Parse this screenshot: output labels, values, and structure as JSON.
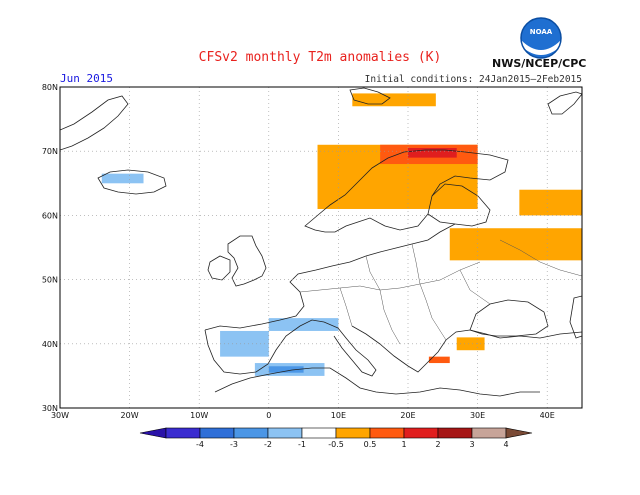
{
  "title": "CFSv2 monthly T2m anomalies (K)",
  "month": "Jun 2015",
  "initial_conditions": "Initial conditions: 24Jan2015–2Feb2015",
  "agency": "NWS/NCEP/CPC",
  "logo_text": "NOAA",
  "map": {
    "lon_range": [
      -30,
      45
    ],
    "lat_range": [
      30,
      80
    ],
    "lon_ticks": [
      {
        "value": -30,
        "label": "30W"
      },
      {
        "value": -20,
        "label": "20W"
      },
      {
        "value": -10,
        "label": "10W"
      },
      {
        "value": 0,
        "label": "0"
      },
      {
        "value": 10,
        "label": "10E"
      },
      {
        "value": 20,
        "label": "20E"
      },
      {
        "value": 30,
        "label": "30E"
      },
      {
        "value": 40,
        "label": "40E"
      }
    ],
    "lat_ticks": [
      {
        "value": 30,
        "label": "30N"
      },
      {
        "value": 40,
        "label": "40N"
      },
      {
        "value": 50,
        "label": "50N"
      },
      {
        "value": 60,
        "label": "60N"
      },
      {
        "value": 70,
        "label": "70N"
      },
      {
        "value": 80,
        "label": "80N"
      }
    ],
    "gridlines": "dotted"
  },
  "colorbar": {
    "labels": [
      "-4",
      "-3",
      "-2",
      "-1",
      "-0.5",
      "0.5",
      "1",
      "2",
      "3",
      "4"
    ],
    "colors": [
      "#2a12a8",
      "#3a2cd0",
      "#2f6fd8",
      "#4b96e6",
      "#8cc3f3",
      "#ffffff",
      "#ffa500",
      "#ff5a10",
      "#e01e1e",
      "#a61616",
      "#c7a499",
      "#7a4a35"
    ]
  },
  "anomaly_regions": [
    {
      "name": "iceland-cool",
      "bin": "-1 to -0.5",
      "color": "#8cc3f3",
      "lon": [
        -24,
        -18
      ],
      "lat": [
        65,
        66.5
      ]
    },
    {
      "name": "iberia-cool",
      "bin": "-1 to -0.5",
      "color": "#8cc3f3",
      "lon": [
        -7,
        0
      ],
      "lat": [
        38,
        42
      ]
    },
    {
      "name": "iberia-north-coast-cool",
      "bin": "-1 to -0.5",
      "color": "#8cc3f3",
      "lon": [
        0,
        10
      ],
      "lat": [
        42,
        44
      ]
    },
    {
      "name": "north-africa-cool",
      "bin": "-1 to -0.5",
      "color": "#8cc3f3",
      "lon": [
        -2,
        8
      ],
      "lat": [
        35,
        37
      ]
    },
    {
      "name": "north-africa-core-cool",
      "bin": "-2 to -1",
      "color": "#4b96e6",
      "lon": [
        0,
        5
      ],
      "lat": [
        35.5,
        36.5
      ]
    },
    {
      "name": "scandinavia-warm",
      "bin": "0.5 to 1",
      "color": "#ffa500",
      "lon": [
        7,
        30
      ],
      "lat": [
        61,
        71
      ]
    },
    {
      "name": "north-scandinavia-hot",
      "bin": "1 to 2",
      "color": "#ff5a10",
      "lon": [
        16,
        30
      ],
      "lat": [
        68,
        71
      ]
    },
    {
      "name": "north-scandinavia-core",
      "bin": "2 to 3",
      "color": "#e01e1e",
      "lon": [
        20,
        27
      ],
      "lat": [
        69,
        70.5
      ]
    },
    {
      "name": "svalbard-warm",
      "bin": "0.5 to 1",
      "color": "#ffa500",
      "lon": [
        12,
        24
      ],
      "lat": [
        77,
        79
      ]
    },
    {
      "name": "russia-warm",
      "bin": "0.5 to 1",
      "color": "#ffa500",
      "lon": [
        26,
        45
      ],
      "lat": [
        53,
        58
      ]
    },
    {
      "name": "russia-north-warm",
      "bin": "0.5 to 1",
      "color": "#ffa500",
      "lon": [
        36,
        45
      ],
      "lat": [
        60,
        64
      ]
    },
    {
      "name": "turkey-warm",
      "bin": "0.5 to 1",
      "color": "#ffa500",
      "lon": [
        27,
        31
      ],
      "lat": [
        39,
        41
      ]
    },
    {
      "name": "greece-warm",
      "bin": "1 to 2",
      "color": "#ff5a10",
      "lon": [
        23,
        26
      ],
      "lat": [
        37,
        38
      ]
    }
  ]
}
